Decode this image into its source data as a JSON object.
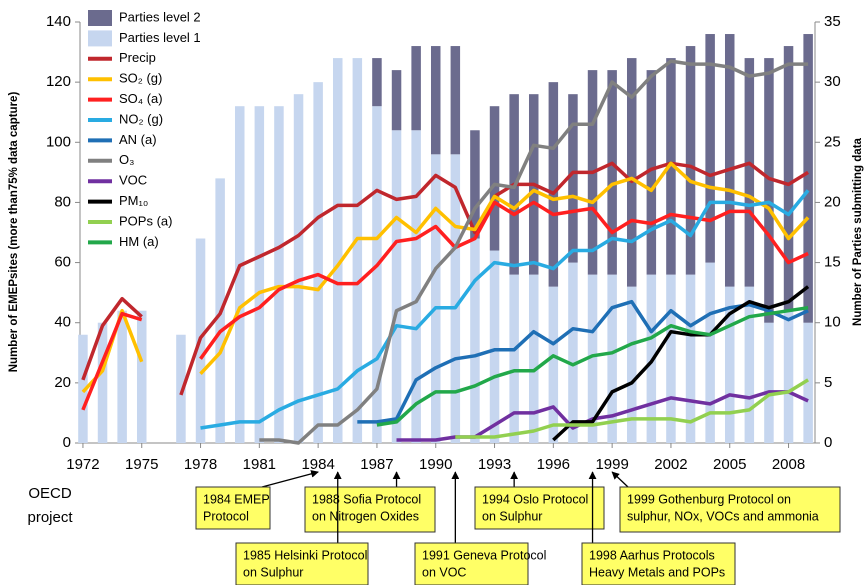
{
  "chart_data": {
    "type": "combo",
    "y_label": "Number of EMEPsites (more than75% data capture)",
    "y2_label": "Number of Parties submitting data",
    "x": [
      1972,
      1973,
      1974,
      1975,
      1976,
      1977,
      1978,
      1979,
      1980,
      1981,
      1982,
      1983,
      1984,
      1985,
      1986,
      1987,
      1988,
      1989,
      1990,
      1991,
      1992,
      1993,
      1994,
      1995,
      1996,
      1997,
      1998,
      1999,
      2000,
      2001,
      2002,
      2003,
      2004,
      2005,
      2006,
      2007,
      2008,
      2009
    ],
    "xlim": [
      1971.85,
      2009.35
    ],
    "xticks": [
      1972,
      1975,
      1978,
      1981,
      1984,
      1987,
      1990,
      1993,
      1996,
      1999,
      2002,
      2005,
      2008
    ],
    "ylim": [
      0,
      140
    ],
    "yticks": [
      0,
      20,
      40,
      60,
      80,
      100,
      120,
      140
    ],
    "y2lim": [
      0,
      35
    ],
    "y2ticks": [
      0,
      5,
      10,
      15,
      20,
      25,
      30,
      35
    ],
    "stacked": true,
    "series": [
      {
        "name": "Parties level 2",
        "type": "bar",
        "axis": "y2",
        "color": "#6b6b8e",
        "values": [
          null,
          null,
          null,
          null,
          null,
          null,
          null,
          null,
          null,
          null,
          null,
          null,
          null,
          null,
          null,
          4,
          5,
          7,
          9,
          9,
          9,
          12,
          15,
          15,
          17,
          14,
          17,
          17,
          19,
          17,
          18,
          19,
          19,
          21,
          19,
          22,
          22,
          24
        ]
      },
      {
        "name": "Parties level 1",
        "type": "bar",
        "axis": "y2",
        "color": "#c6d6ef",
        "values": [
          9,
          10,
          11,
          11,
          null,
          9,
          17,
          22,
          28,
          28,
          28,
          29,
          30,
          32,
          32,
          28,
          26,
          26,
          24,
          24,
          17,
          16,
          14,
          14,
          13,
          15,
          14,
          14,
          13,
          14,
          14,
          14,
          15,
          13,
          13,
          10,
          11,
          10
        ]
      },
      {
        "name": "Precip",
        "type": "line",
        "color": "#c0272d",
        "values": [
          21,
          39,
          48,
          42,
          null,
          16,
          35,
          43,
          59,
          62,
          65,
          69,
          75,
          79,
          79,
          84,
          81,
          82,
          89,
          85,
          70,
          82,
          86,
          86,
          83,
          90,
          90,
          93,
          87,
          91,
          93,
          92,
          89,
          91,
          93,
          88,
          86,
          90
        ]
      },
      {
        "name": "SO₂ (g)",
        "type": "line",
        "color": "#ffc000",
        "values": [
          17,
          24,
          44,
          27,
          null,
          null,
          23,
          30,
          45,
          50,
          52,
          52,
          51,
          59,
          68,
          68,
          75,
          70,
          78,
          72,
          71,
          82,
          78,
          84,
          81,
          82,
          80,
          86,
          88,
          84,
          93,
          87,
          85,
          84,
          82,
          78,
          68,
          75
        ]
      },
      {
        "name": "SO₄ (a)",
        "type": "line",
        "color": "#ff2020",
        "values": [
          11,
          27,
          43,
          41,
          null,
          null,
          28,
          37,
          42,
          45,
          51,
          54,
          56,
          53,
          53,
          59,
          67,
          68,
          72,
          65,
          68,
          80,
          76,
          80,
          76,
          77,
          78,
          70,
          74,
          73,
          76,
          75,
          74,
          77,
          77,
          69,
          60,
          63
        ]
      },
      {
        "name": "NO₂ (g)",
        "type": "line",
        "color": "#29abe2",
        "values": [
          null,
          null,
          null,
          null,
          null,
          null,
          5,
          6,
          7,
          7,
          11,
          14,
          16,
          18,
          24,
          28,
          39,
          38,
          45,
          45,
          54,
          60,
          59,
          60,
          58,
          64,
          64,
          68,
          67,
          71,
          74,
          69,
          80,
          80,
          79,
          80,
          76,
          84
        ]
      },
      {
        "name": "AN (a)",
        "type": "line",
        "color": "#1f6fb5",
        "values": [
          null,
          null,
          null,
          null,
          null,
          null,
          null,
          null,
          null,
          null,
          null,
          null,
          null,
          null,
          7,
          7,
          8,
          21,
          25,
          28,
          29,
          31,
          31,
          37,
          33,
          38,
          37,
          45,
          47,
          37,
          44,
          39,
          43,
          45,
          46,
          44,
          41,
          44
        ]
      },
      {
        "name": "O₃",
        "type": "line",
        "color": "#808080",
        "values": [
          null,
          null,
          null,
          null,
          null,
          null,
          null,
          null,
          null,
          1,
          1,
          0,
          6,
          6,
          11,
          18,
          44,
          47,
          58,
          65,
          78,
          86,
          85,
          99,
          98,
          106,
          106,
          120,
          115,
          122,
          127,
          126,
          126,
          125,
          122,
          123,
          126,
          126
        ]
      },
      {
        "name": "VOC",
        "type": "line",
        "color": "#7030a0",
        "values": [
          null,
          null,
          null,
          null,
          null,
          null,
          null,
          null,
          null,
          null,
          null,
          null,
          null,
          null,
          null,
          null,
          1,
          1,
          1,
          2,
          2,
          6,
          10,
          10,
          12,
          5,
          8,
          9,
          11,
          13,
          15,
          14,
          13,
          16,
          15,
          17,
          17,
          14
        ]
      },
      {
        "name": "PM₁₀",
        "type": "line",
        "color": "#000000",
        "values": [
          null,
          null,
          null,
          null,
          null,
          null,
          null,
          null,
          null,
          null,
          null,
          null,
          null,
          null,
          null,
          null,
          null,
          null,
          null,
          null,
          null,
          null,
          null,
          null,
          1,
          7,
          7,
          17,
          20,
          27,
          37,
          36,
          36,
          43,
          47,
          45,
          47,
          52
        ]
      },
      {
        "name": "POPs (a)",
        "type": "line",
        "color": "#92d050",
        "values": [
          null,
          null,
          null,
          null,
          null,
          null,
          null,
          null,
          null,
          null,
          null,
          null,
          null,
          null,
          null,
          null,
          null,
          null,
          null,
          2,
          2,
          2,
          3,
          4,
          6,
          6,
          6,
          7,
          8,
          8,
          8,
          7,
          10,
          10,
          11,
          16,
          17,
          21
        ]
      },
      {
        "name": "HM (a)",
        "type": "line",
        "color": "#22a84a",
        "values": [
          null,
          null,
          null,
          null,
          null,
          null,
          null,
          null,
          null,
          null,
          null,
          null,
          null,
          null,
          null,
          6,
          7,
          13,
          17,
          17,
          19,
          22,
          24,
          24,
          29,
          26,
          29,
          30,
          33,
          35,
          39,
          37,
          36,
          39,
          42,
          43,
          44,
          45
        ]
      }
    ],
    "annotations": [
      {
        "lines": [
          "OECD",
          "project"
        ]
      },
      {
        "lines": [
          "1984 EMEP",
          "Protocol"
        ]
      },
      {
        "lines": [
          "1988 Sofia Protocol",
          "on Nitrogen Oxides"
        ]
      },
      {
        "lines": [
          "1994 Oslo Protocol",
          "on Sulphur"
        ]
      },
      {
        "lines": [
          "1999 Gothenburg Protocol on",
          "sulphur, NOx, VOCs and ammonia"
        ]
      },
      {
        "lines": [
          "1985 Helsinki Protocol",
          "on Sulphur"
        ]
      },
      {
        "lines": [
          "1991 Geneva Protocol",
          "on VOC"
        ]
      },
      {
        "lines": [
          "1998 Aarhus Protocols",
          "Heavy Metals and POPs"
        ]
      }
    ]
  }
}
